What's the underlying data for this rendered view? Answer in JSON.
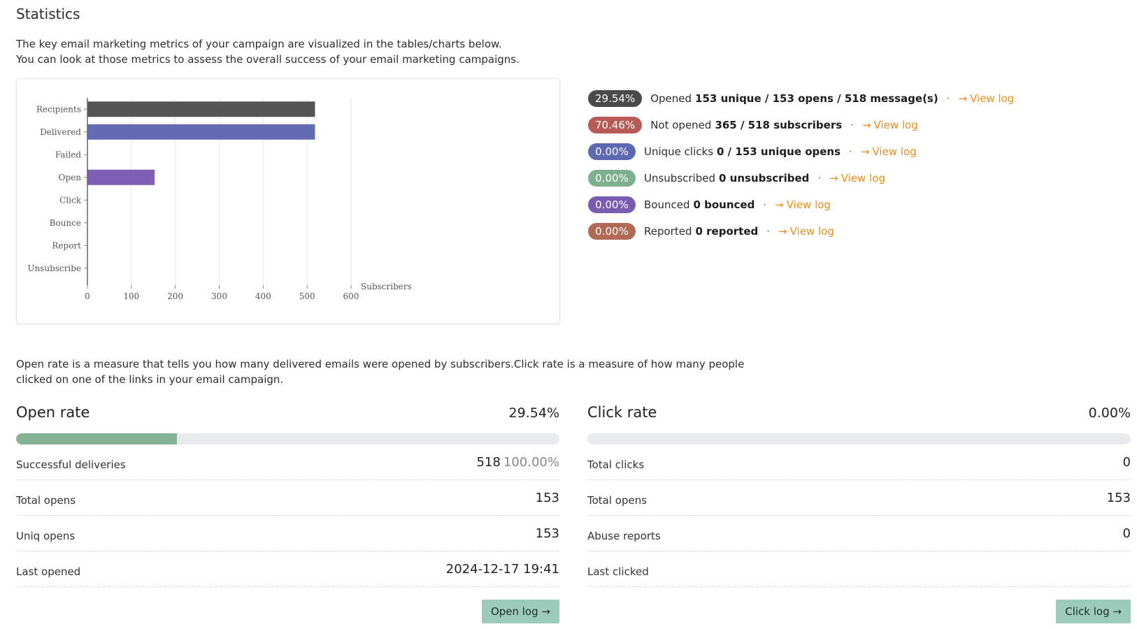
{
  "page": {
    "title": "Statistics",
    "intro_line1": "The key email marketing metrics of your campaign are visualized in the tables/charts below.",
    "intro_line2": "You can look at those metrics to assess the overall success of your email marketing campaigns.",
    "description": "Open rate is a measure that tells you how many delivered emails were opened by subscribers.Click rate is a measure of how many people clicked on one of the links in your email campaign."
  },
  "chart_data": {
    "type": "bar",
    "orientation": "horizontal",
    "categories": [
      "Recipients",
      "Delivered",
      "Failed",
      "Open",
      "Click",
      "Bounce",
      "Report",
      "Unsubscribe"
    ],
    "values": [
      518,
      518,
      0,
      153,
      0,
      0,
      0,
      0
    ],
    "colors": [
      "#555555",
      "#636bb3",
      "#cccccc",
      "#7e5fb3",
      "#cccccc",
      "#cccccc",
      "#cccccc",
      "#cccccc"
    ],
    "xlabel": "Subscribers",
    "xlim": [
      0,
      600
    ],
    "xticks": [
      "0",
      "100",
      "200",
      "300",
      "400",
      "500",
      "600"
    ],
    "grid": true
  },
  "stats": [
    {
      "percent": "29.54%",
      "color": "#4a4a4a",
      "label": "Opened",
      "detail": "153 unique / 153 opens / 518 message(s)",
      "link": "View log"
    },
    {
      "percent": "70.46%",
      "color": "#b85a55",
      "label": "Not opened",
      "detail": "365 / 518 subscribers",
      "link": "View log"
    },
    {
      "percent": "0.00%",
      "color": "#5d69b0",
      "label": "Unique clicks",
      "detail": "0 / 153 unique opens",
      "link": "View log"
    },
    {
      "percent": "0.00%",
      "color": "#7eb08f",
      "label": "Unsubscribed",
      "detail": "0 unsubscribed",
      "link": "View log"
    },
    {
      "percent": "0.00%",
      "color": "#7a5bb2",
      "label": "Bounced",
      "detail": "0 bounced",
      "link": "View log"
    },
    {
      "percent": "0.00%",
      "color": "#b06a55",
      "label": "Reported",
      "detail": "0 reported",
      "link": "View log"
    }
  ],
  "open_rate": {
    "title": "Open rate",
    "value": "29.54%",
    "progress_fraction": 0.2954,
    "rows": [
      {
        "label": "Successful deliveries",
        "value": "518",
        "sub": "100.00%"
      },
      {
        "label": "Total opens",
        "value": "153",
        "sub": ""
      },
      {
        "label": "Uniq opens",
        "value": "153",
        "sub": ""
      },
      {
        "label": "Last opened",
        "value": "2024-12-17 19:41",
        "sub": ""
      }
    ],
    "button_label": "Open log"
  },
  "click_rate": {
    "title": "Click rate",
    "value": "0.00%",
    "progress_fraction": 0,
    "rows": [
      {
        "label": "Total clicks",
        "value": "0",
        "sub": ""
      },
      {
        "label": "Total opens",
        "value": "153",
        "sub": ""
      },
      {
        "label": "Abuse reports",
        "value": "0",
        "sub": ""
      },
      {
        "label": "Last clicked",
        "value": "",
        "sub": ""
      }
    ],
    "button_label": "Click log"
  },
  "icons": {
    "link_arrow": "arrow-right-icon"
  }
}
